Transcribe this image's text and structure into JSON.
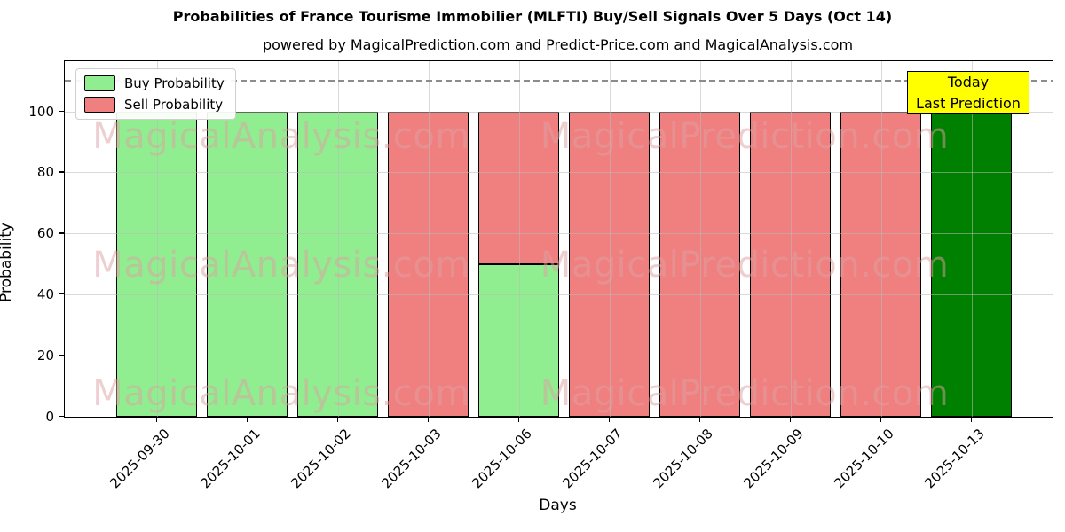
{
  "chart_data": {
    "type": "bar",
    "stacked": true,
    "title": "Probabilities of France Tourisme Immobilier (MLFTI) Buy/Sell Signals Over 5 Days (Oct 14)",
    "subtitle": "powered by MagicalPrediction.com and Predict-Price.com and MagicalAnalysis.com",
    "xlabel": "Days",
    "ylabel": "Probability",
    "ylim": [
      0,
      116
    ],
    "yticks": [
      0,
      20,
      40,
      60,
      80,
      100
    ],
    "grid": true,
    "legend_position": "upper left",
    "dashed_reference_line_y": 110,
    "categories": [
      "2025-09-30",
      "2025-10-01",
      "2025-10-02",
      "2025-10-03",
      "2025-10-06",
      "2025-10-07",
      "2025-10-08",
      "2025-10-09",
      "2025-10-10",
      "2025-10-13"
    ],
    "series": [
      {
        "name": "Buy Probability",
        "color": "#90ee90",
        "values": [
          100,
          100,
          100,
          0,
          50,
          0,
          0,
          0,
          0,
          0
        ]
      },
      {
        "name": "Sell Probability",
        "color": "#f08080",
        "values": [
          0,
          0,
          0,
          100,
          50,
          100,
          100,
          100,
          100,
          0
        ]
      },
      {
        "name": "Today Last Prediction",
        "color": "#008000",
        "values": [
          0,
          0,
          0,
          0,
          0,
          0,
          0,
          0,
          0,
          100
        ]
      }
    ],
    "legend": {
      "entries": [
        {
          "label": "Buy Probability",
          "color": "#90ee90"
        },
        {
          "label": "Sell Probability",
          "color": "#f08080"
        }
      ]
    },
    "annotation": {
      "line1": "Today",
      "line2": "Last Prediction",
      "bg_color": "#ffff00",
      "border_color": "#000000"
    },
    "watermarks": {
      "left_text": "MagicalAnalysis.com",
      "right_text": "MagicalPrediction.com"
    },
    "bar_edge_color": "#000000",
    "today_bar_color": "#008000",
    "dashed_line_color": "#8c8c8c"
  }
}
